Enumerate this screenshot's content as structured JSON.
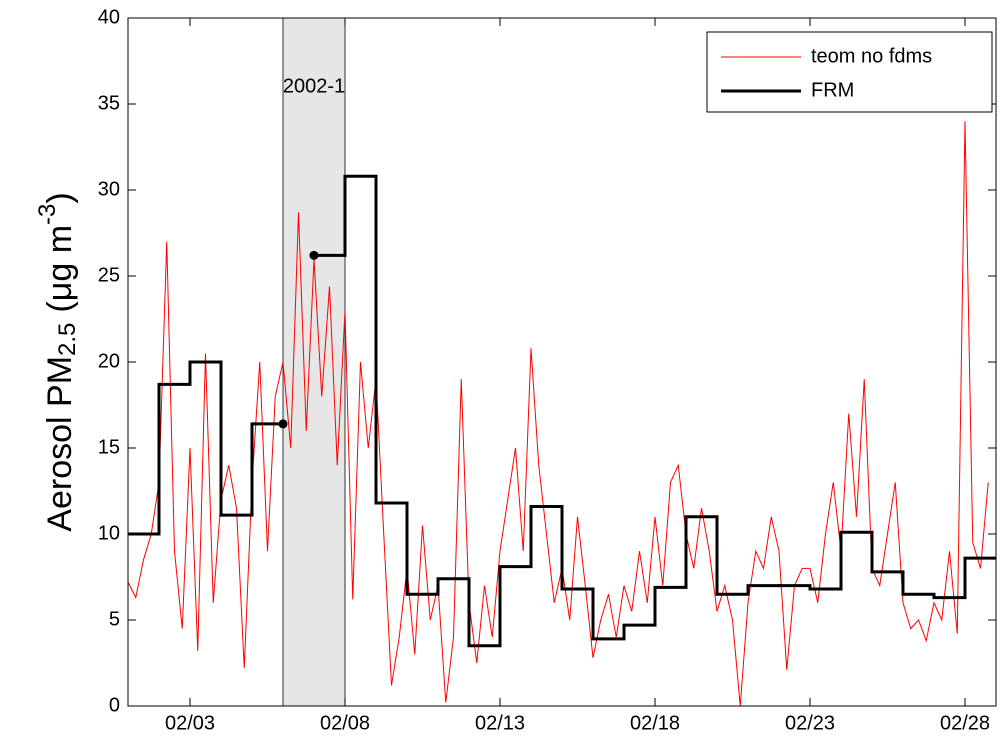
{
  "chart_data": {
    "type": "line",
    "ylabel": {
      "main": "Aerosol PM",
      "sub": "2.5",
      "unit": "(μg m",
      "sup": "-3",
      "close": ")"
    },
    "xlim": [
      1,
      29
    ],
    "xticks": [
      {
        "value": 3,
        "label": "02/03"
      },
      {
        "value": 8,
        "label": "02/08"
      },
      {
        "value": 13,
        "label": "02/13"
      },
      {
        "value": 18,
        "label": "02/18"
      },
      {
        "value": 23,
        "label": "02/23"
      },
      {
        "value": 28,
        "label": "02/28"
      }
    ],
    "ylim": [
      0,
      40
    ],
    "yticks": [
      0,
      5,
      10,
      15,
      20,
      25,
      30,
      35,
      40
    ],
    "grid": false,
    "legend": "top-right",
    "shaded": {
      "x": [
        6,
        8
      ],
      "label": "2002-1",
      "color": "#e6e6e6"
    },
    "series": [
      {
        "name": "teom no fdms",
        "color": "#ff0000",
        "style": "line",
        "x": [
          1,
          1.25,
          1.5,
          1.75,
          2,
          2.25,
          2.5,
          2.75,
          3,
          3.25,
          3.5,
          3.75,
          4,
          4.25,
          4.5,
          4.75,
          5,
          5.25,
          5.5,
          5.75,
          6,
          6.25,
          6.5,
          6.75,
          7,
          7.25,
          7.5,
          7.75,
          8,
          8.25,
          8.5,
          8.75,
          9,
          9.25,
          9.5,
          9.75,
          10,
          10.25,
          10.5,
          10.75,
          11,
          11.25,
          11.5,
          11.75,
          12,
          12.25,
          12.5,
          12.75,
          13,
          13.25,
          13.5,
          13.75,
          14,
          14.25,
          14.5,
          14.75,
          15,
          15.25,
          15.5,
          15.75,
          16,
          16.25,
          16.5,
          16.75,
          17,
          17.25,
          17.5,
          17.75,
          18,
          18.25,
          18.5,
          18.75,
          19,
          19.25,
          19.5,
          19.75,
          20,
          20.25,
          20.5,
          20.75,
          21,
          21.25,
          21.5,
          21.75,
          22,
          22.25,
          22.5,
          22.75,
          23,
          23.25,
          23.5,
          23.75,
          24,
          24.25,
          24.5,
          24.75,
          25,
          25.25,
          25.5,
          25.75,
          26,
          26.25,
          26.5,
          26.75,
          27,
          27.25,
          27.5,
          27.75,
          28,
          28.25,
          28.5,
          28.75
        ],
        "values": [
          7.2,
          6.3,
          8.5,
          10,
          13,
          27,
          9,
          4.5,
          15,
          3.2,
          20.5,
          6,
          12,
          14,
          11.5,
          2.2,
          13,
          20,
          9,
          18,
          20,
          15,
          28.7,
          16,
          26,
          18,
          24.4,
          14,
          23,
          6.2,
          20,
          15,
          19,
          10,
          1.2,
          4,
          8,
          3,
          10.5,
          5,
          7,
          0.2,
          4,
          19,
          6,
          2.5,
          7,
          4,
          9,
          12,
          15,
          9,
          20.8,
          14,
          10,
          6,
          8,
          5,
          11,
          7,
          2.8,
          5,
          6.5,
          4,
          7,
          5.5,
          9,
          6,
          11,
          7,
          13,
          14,
          10,
          8,
          11.5,
          9,
          5.5,
          7,
          5,
          0,
          6,
          9,
          8,
          11,
          9,
          2.1,
          7,
          8,
          8,
          6,
          10,
          13,
          9,
          17,
          11,
          19,
          8,
          7,
          10,
          13,
          6,
          4.5,
          5,
          3.8,
          6,
          5,
          9,
          4.2,
          34,
          9.5,
          8,
          13
        ]
      },
      {
        "name": "FRM",
        "color": "#000000",
        "style": "step",
        "x": [
          1,
          2,
          3,
          4,
          5,
          6,
          7,
          8,
          9,
          10,
          11,
          12,
          13,
          14,
          15,
          16,
          17,
          18,
          19,
          20,
          21,
          22,
          23,
          24,
          25,
          26,
          27,
          28
        ],
        "values": [
          10,
          18.7,
          20,
          11.1,
          16.4,
          null,
          26.2,
          30.8,
          11.8,
          6.5,
          7.4,
          3.5,
          8.1,
          11.6,
          6.8,
          3.9,
          4.7,
          6.9,
          11.0,
          6.5,
          7.0,
          7.0,
          6.8,
          10.1,
          7.8,
          6.5,
          6.3,
          8.6
        ]
      }
    ]
  }
}
